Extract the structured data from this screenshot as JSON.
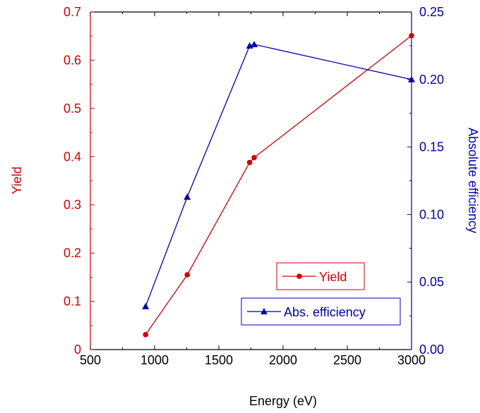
{
  "chart_data": {
    "type": "line",
    "xlabel": "Energy (eV)",
    "y_left_label": "Yield",
    "y_right_label": "Absolute  efficiency",
    "xlim": [
      500,
      3000
    ],
    "x_ticks": [
      500,
      1000,
      1500,
      2000,
      2500,
      3000
    ],
    "x_tick_labels": [
      "500",
      "1000",
      "1500",
      "2000",
      "2500",
      "3000"
    ],
    "y_left_lim": [
      0,
      0.7
    ],
    "y_left_ticks": [
      0,
      0.1,
      0.2,
      0.3,
      0.4,
      0.5,
      0.6,
      0.7
    ],
    "y_left_tick_labels": [
      "0",
      "0.1",
      "0.2",
      "0.3",
      "0.4",
      "0.5",
      "0.6",
      "0.7"
    ],
    "y_right_lim": [
      0,
      0.25
    ],
    "y_right_ticks": [
      0,
      0.05,
      0.1,
      0.15,
      0.2,
      0.25
    ],
    "y_right_tick_labels": [
      "0.00",
      "0.05",
      "0.10",
      "0.15",
      "0.20",
      "0.25"
    ],
    "grid": false,
    "colors": {
      "left": "#d00000",
      "right": "#0000b0",
      "axis": "#000000"
    },
    "series": [
      {
        "name": "Yield",
        "axis": "left",
        "marker": "circle",
        "color": "#d00000",
        "x": [
          930,
          1254,
          1740,
          1775,
          3000
        ],
        "y": [
          0.031,
          0.155,
          0.388,
          0.398,
          0.651
        ]
      },
      {
        "name": "Abs. efficiency",
        "axis": "right",
        "marker": "triangle",
        "color": "#0000b0",
        "x": [
          930,
          1254,
          1740,
          1775,
          3000
        ],
        "y": [
          0.032,
          0.113,
          0.225,
          0.226,
          0.2
        ]
      }
    ]
  }
}
